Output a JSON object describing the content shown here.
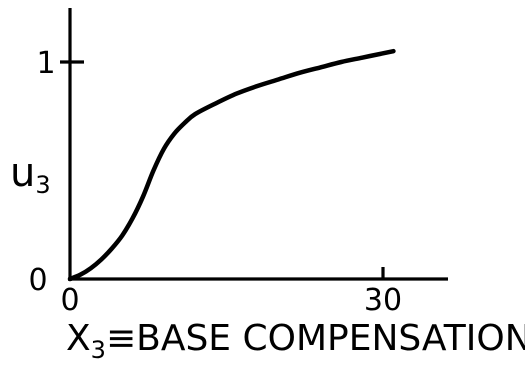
{
  "chart_data": {
    "type": "line",
    "title": "",
    "xlabel": {
      "main": "X",
      "sub": "3",
      "rest": "≡BASE  COMPENSATION"
    },
    "ylabel": {
      "main": "u",
      "sub": "3"
    },
    "xlim": [
      0,
      36
    ],
    "ylim": [
      0,
      1.2
    ],
    "x_ticks": [
      {
        "value": 0,
        "label": "0"
      },
      {
        "value": 30,
        "label": "30"
      }
    ],
    "y_ticks": [
      {
        "value": 0,
        "label": "0"
      },
      {
        "value": 1,
        "label": "1"
      }
    ],
    "grid": false,
    "legend": "none",
    "series": [
      {
        "x": [
          0,
          1,
          2,
          3,
          4,
          5,
          6,
          7,
          8,
          9,
          10,
          11,
          12,
          14,
          16,
          18,
          20,
          22,
          24,
          26,
          28,
          30,
          31
        ],
        "y": [
          0,
          0.02,
          0.05,
          0.09,
          0.14,
          0.2,
          0.28,
          0.38,
          0.5,
          0.6,
          0.67,
          0.72,
          0.76,
          0.81,
          0.855,
          0.89,
          0.92,
          0.95,
          0.975,
          1.0,
          1.02,
          1.04,
          1.05
        ]
      }
    ],
    "colors": {
      "line": "#000000",
      "background": "#ffffff"
    }
  }
}
